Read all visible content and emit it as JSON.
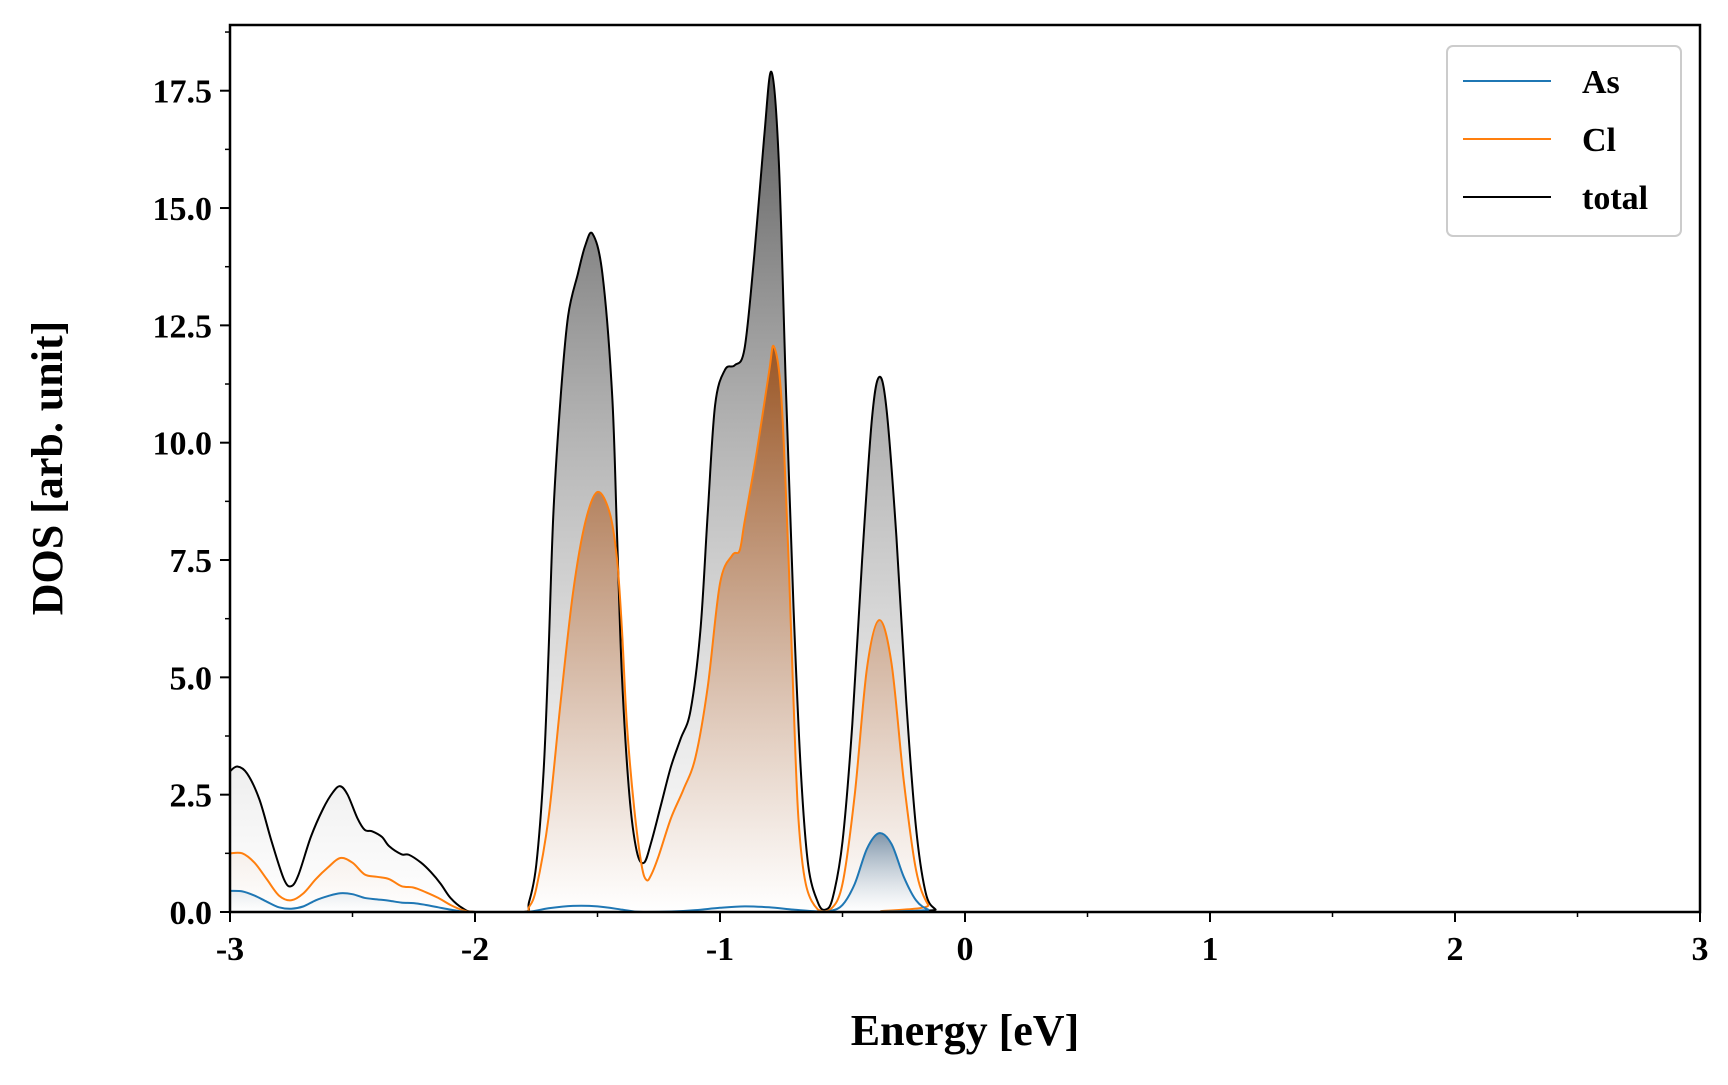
{
  "chart_data": {
    "type": "area",
    "xlabel": "Energy [eV]",
    "ylabel": "DOS [arb. unit]",
    "xlim": [
      -3,
      3
    ],
    "ylim": [
      0,
      18.9
    ],
    "x_ticks": [
      -3,
      -2,
      -1,
      0,
      1,
      2,
      3
    ],
    "x_tick_labels": [
      "-3",
      "-2",
      "-1",
      "0",
      "1",
      "2",
      "3"
    ],
    "y_ticks": [
      0,
      2.5,
      5,
      7.5,
      10,
      12.5,
      15,
      17.5
    ],
    "y_tick_labels": [
      "0.0",
      "2.5",
      "5.0",
      "7.5",
      "10.0",
      "12.5",
      "15.0",
      "17.5"
    ],
    "grid": false,
    "legend_position": "top-right",
    "series": [
      {
        "name": "As",
        "color": "#1f77b4",
        "points": [
          [
            -3.0,
            0.45
          ],
          [
            -2.95,
            0.44
          ],
          [
            -2.9,
            0.35
          ],
          [
            -2.85,
            0.22
          ],
          [
            -2.8,
            0.1
          ],
          [
            -2.75,
            0.07
          ],
          [
            -2.7,
            0.12
          ],
          [
            -2.65,
            0.25
          ],
          [
            -2.6,
            0.34
          ],
          [
            -2.55,
            0.4
          ],
          [
            -2.5,
            0.38
          ],
          [
            -2.45,
            0.3
          ],
          [
            -2.4,
            0.27
          ],
          [
            -2.35,
            0.24
          ],
          [
            -2.3,
            0.2
          ],
          [
            -2.25,
            0.19
          ],
          [
            -2.2,
            0.15
          ],
          [
            -2.15,
            0.1
          ],
          [
            -2.1,
            0.05
          ],
          [
            -2.05,
            0.01
          ],
          [
            -2.0,
            0.0
          ],
          [
            -1.8,
            0.0
          ],
          [
            -1.75,
            0.03
          ],
          [
            -1.7,
            0.08
          ],
          [
            -1.6,
            0.13
          ],
          [
            -1.5,
            0.12
          ],
          [
            -1.4,
            0.05
          ],
          [
            -1.35,
            0.01
          ],
          [
            -1.3,
            0.0
          ],
          [
            -1.2,
            0.01
          ],
          [
            -1.1,
            0.04
          ],
          [
            -1.0,
            0.09
          ],
          [
            -0.9,
            0.12
          ],
          [
            -0.8,
            0.1
          ],
          [
            -0.7,
            0.05
          ],
          [
            -0.6,
            0.01
          ],
          [
            -0.55,
            0.02
          ],
          [
            -0.5,
            0.15
          ],
          [
            -0.45,
            0.6
          ],
          [
            -0.4,
            1.35
          ],
          [
            -0.35,
            1.68
          ],
          [
            -0.3,
            1.45
          ],
          [
            -0.25,
            0.75
          ],
          [
            -0.2,
            0.25
          ],
          [
            -0.15,
            0.05
          ],
          [
            -0.1,
            0.0
          ],
          [
            3.0,
            0.0
          ]
        ]
      },
      {
        "name": "Cl",
        "color": "#ff7f0e",
        "points": [
          [
            -3.0,
            1.25
          ],
          [
            -2.95,
            1.25
          ],
          [
            -2.9,
            1.05
          ],
          [
            -2.85,
            0.7
          ],
          [
            -2.8,
            0.35
          ],
          [
            -2.75,
            0.25
          ],
          [
            -2.7,
            0.4
          ],
          [
            -2.65,
            0.7
          ],
          [
            -2.6,
            0.95
          ],
          [
            -2.55,
            1.15
          ],
          [
            -2.5,
            1.05
          ],
          [
            -2.45,
            0.8
          ],
          [
            -2.4,
            0.75
          ],
          [
            -2.35,
            0.7
          ],
          [
            -2.3,
            0.55
          ],
          [
            -2.25,
            0.52
          ],
          [
            -2.2,
            0.42
          ],
          [
            -2.15,
            0.3
          ],
          [
            -2.1,
            0.15
          ],
          [
            -2.05,
            0.04
          ],
          [
            -2.0,
            0.0
          ],
          [
            -1.8,
            0.0
          ],
          [
            -1.78,
            0.1
          ],
          [
            -1.75,
            0.5
          ],
          [
            -1.7,
            2.0
          ],
          [
            -1.65,
            4.5
          ],
          [
            -1.6,
            6.8
          ],
          [
            -1.55,
            8.3
          ],
          [
            -1.5,
            8.95
          ],
          [
            -1.45,
            8.5
          ],
          [
            -1.42,
            7.5
          ],
          [
            -1.4,
            6.0
          ],
          [
            -1.38,
            4.0
          ],
          [
            -1.35,
            2.2
          ],
          [
            -1.32,
            1.0
          ],
          [
            -1.3,
            0.68
          ],
          [
            -1.28,
            0.8
          ],
          [
            -1.25,
            1.2
          ],
          [
            -1.2,
            2.0
          ],
          [
            -1.15,
            2.6
          ],
          [
            -1.1,
            3.3
          ],
          [
            -1.05,
            4.8
          ],
          [
            -1.0,
            7.0
          ],
          [
            -0.95,
            7.6
          ],
          [
            -0.92,
            7.7
          ],
          [
            -0.9,
            8.3
          ],
          [
            -0.85,
            9.8
          ],
          [
            -0.8,
            11.5
          ],
          [
            -0.78,
            12.05
          ],
          [
            -0.75,
            11.0
          ],
          [
            -0.72,
            7.5
          ],
          [
            -0.7,
            4.5
          ],
          [
            -0.68,
            2.0
          ],
          [
            -0.65,
            0.6
          ],
          [
            -0.6,
            0.05
          ],
          [
            -0.55,
            0.05
          ],
          [
            -0.5,
            0.6
          ],
          [
            -0.45,
            2.5
          ],
          [
            -0.4,
            5.2
          ],
          [
            -0.35,
            6.22
          ],
          [
            -0.3,
            5.3
          ],
          [
            -0.25,
            2.8
          ],
          [
            -0.2,
            0.9
          ],
          [
            -0.15,
            0.15
          ],
          [
            -0.1,
            0.0
          ],
          [
            3.0,
            0.0
          ]
        ]
      },
      {
        "name": "total",
        "color": "#000000",
        "points": [
          [
            -3.0,
            3.0
          ],
          [
            -2.97,
            3.1
          ],
          [
            -2.93,
            2.95
          ],
          [
            -2.88,
            2.4
          ],
          [
            -2.83,
            1.5
          ],
          [
            -2.78,
            0.7
          ],
          [
            -2.75,
            0.55
          ],
          [
            -2.72,
            0.8
          ],
          [
            -2.67,
            1.6
          ],
          [
            -2.62,
            2.2
          ],
          [
            -2.58,
            2.55
          ],
          [
            -2.55,
            2.68
          ],
          [
            -2.52,
            2.5
          ],
          [
            -2.48,
            2.0
          ],
          [
            -2.45,
            1.75
          ],
          [
            -2.42,
            1.72
          ],
          [
            -2.38,
            1.6
          ],
          [
            -2.35,
            1.4
          ],
          [
            -2.3,
            1.23
          ],
          [
            -2.27,
            1.22
          ],
          [
            -2.22,
            1.05
          ],
          [
            -2.18,
            0.85
          ],
          [
            -2.14,
            0.6
          ],
          [
            -2.1,
            0.3
          ],
          [
            -2.05,
            0.08
          ],
          [
            -2.0,
            0.0
          ],
          [
            -1.8,
            0.0
          ],
          [
            -1.78,
            0.2
          ],
          [
            -1.75,
            1.0
          ],
          [
            -1.72,
            3.0
          ],
          [
            -1.7,
            5.5
          ],
          [
            -1.68,
            8.5
          ],
          [
            -1.65,
            11.0
          ],
          [
            -1.62,
            12.7
          ],
          [
            -1.58,
            13.6
          ],
          [
            -1.55,
            14.2
          ],
          [
            -1.52,
            14.45
          ],
          [
            -1.48,
            13.6
          ],
          [
            -1.44,
            11.0
          ],
          [
            -1.42,
            8.0
          ],
          [
            -1.4,
            5.0
          ],
          [
            -1.37,
            2.5
          ],
          [
            -1.34,
            1.3
          ],
          [
            -1.31,
            1.05
          ],
          [
            -1.28,
            1.5
          ],
          [
            -1.24,
            2.3
          ],
          [
            -1.2,
            3.1
          ],
          [
            -1.16,
            3.7
          ],
          [
            -1.12,
            4.3
          ],
          [
            -1.08,
            6.0
          ],
          [
            -1.05,
            8.5
          ],
          [
            -1.02,
            10.8
          ],
          [
            -0.98,
            11.55
          ],
          [
            -0.94,
            11.65
          ],
          [
            -0.9,
            12.0
          ],
          [
            -0.86,
            14.0
          ],
          [
            -0.82,
            16.5
          ],
          [
            -0.79,
            17.9
          ],
          [
            -0.76,
            16.0
          ],
          [
            -0.73,
            11.0
          ],
          [
            -0.7,
            6.5
          ],
          [
            -0.67,
            3.0
          ],
          [
            -0.64,
            1.0
          ],
          [
            -0.6,
            0.2
          ],
          [
            -0.57,
            0.05
          ],
          [
            -0.54,
            0.3
          ],
          [
            -0.5,
            1.5
          ],
          [
            -0.46,
            4.0
          ],
          [
            -0.42,
            7.5
          ],
          [
            -0.38,
            10.5
          ],
          [
            -0.35,
            11.4
          ],
          [
            -0.32,
            10.7
          ],
          [
            -0.28,
            8.0
          ],
          [
            -0.24,
            4.5
          ],
          [
            -0.2,
            1.8
          ],
          [
            -0.16,
            0.4
          ],
          [
            -0.12,
            0.05
          ],
          [
            -0.1,
            0.0
          ],
          [
            3.0,
            0.0
          ]
        ]
      }
    ]
  }
}
